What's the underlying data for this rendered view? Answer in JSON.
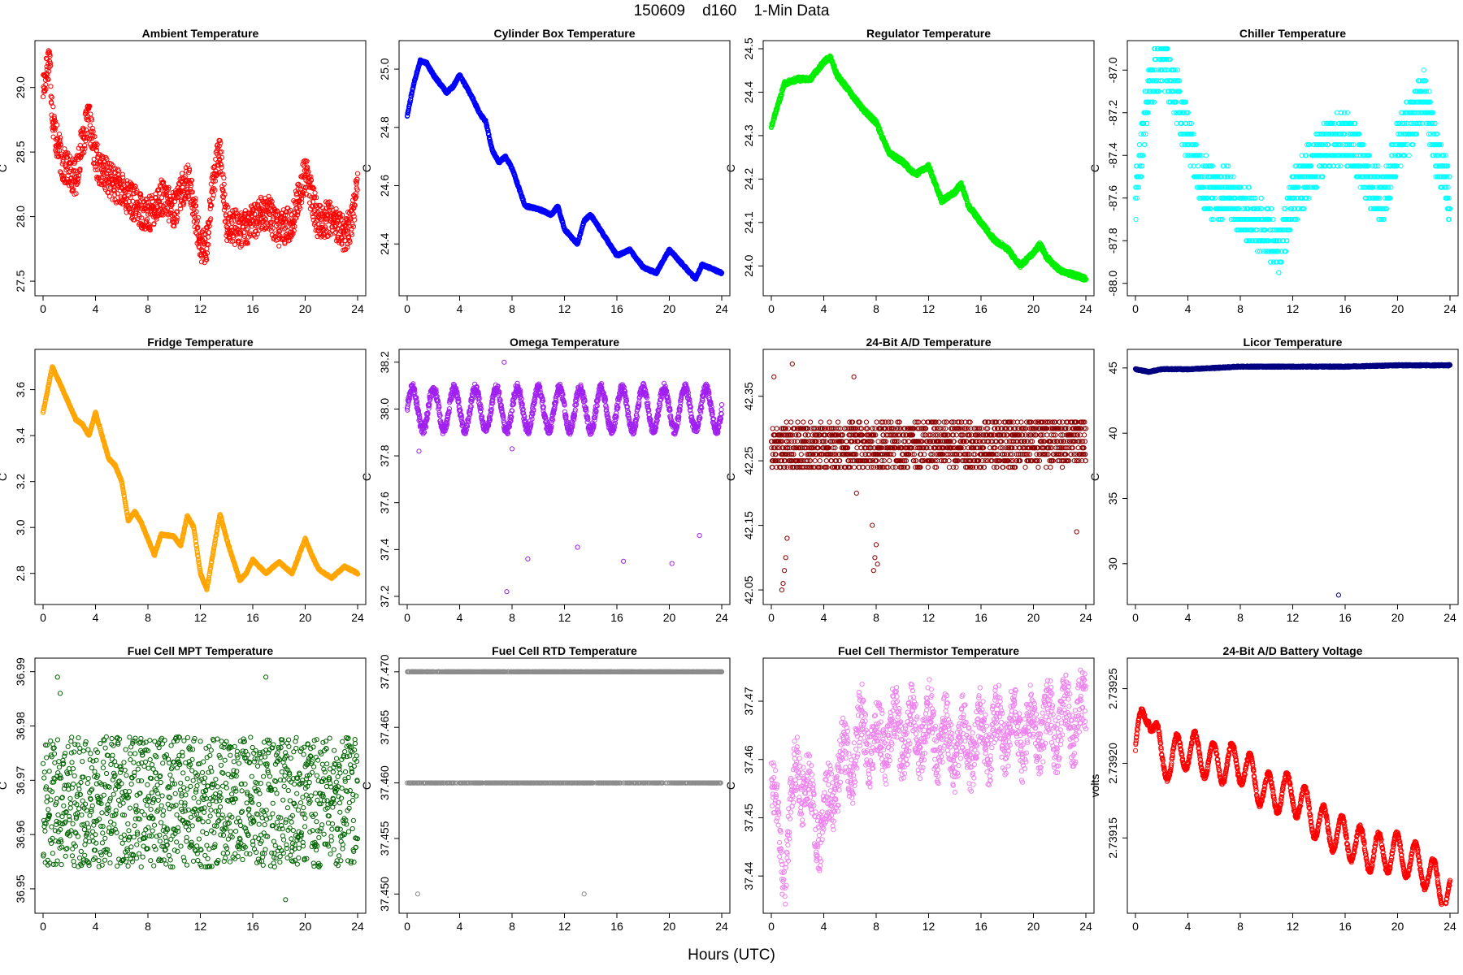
{
  "page": {
    "title": "150609    d160    1-Min Data",
    "xlabel": "Hours (UTC)"
  },
  "chart_data": [
    {
      "type": "scatter",
      "title": "Ambient Temperature",
      "ylabel": "C",
      "color": "#ff0000",
      "xlim": [
        0,
        24
      ],
      "ylim": [
        27.45,
        29.3
      ],
      "xticks": [
        0,
        4,
        8,
        12,
        16,
        20,
        24
      ],
      "yticks": [
        27.5,
        28.0,
        28.5,
        29.0
      ],
      "yticklabels": [
        "27.5",
        "28.0",
        "28.5",
        "29.0"
      ],
      "x": [
        0,
        0.3,
        0.5,
        0.7,
        1,
        1.5,
        2,
        2.5,
        3,
        3.5,
        4,
        4.5,
        5,
        6,
        7,
        8,
        9,
        10,
        11,
        11.5,
        12,
        12.5,
        13,
        13.5,
        14,
        15,
        16,
        17,
        18,
        19,
        20,
        21,
        22,
        23,
        23.5,
        24
      ],
      "y": [
        29.0,
        29.15,
        29.25,
        28.8,
        28.6,
        28.4,
        28.35,
        28.3,
        28.6,
        28.75,
        28.45,
        28.35,
        28.3,
        28.2,
        28.1,
        28.0,
        28.15,
        28.05,
        28.3,
        28.1,
        27.75,
        27.8,
        28.3,
        28.5,
        27.95,
        27.9,
        27.95,
        28.05,
        27.9,
        27.95,
        28.35,
        27.95,
        28.0,
        27.85,
        27.95,
        28.25
      ],
      "noise": 0.14
    },
    {
      "type": "scatter",
      "title": "Cylinder Box Temperature",
      "ylabel": "C",
      "color": "#0000ff",
      "xlim": [
        0,
        24
      ],
      "ylim": [
        24.25,
        25.07
      ],
      "xticks": [
        0,
        4,
        8,
        12,
        16,
        20,
        24
      ],
      "yticks": [
        24.4,
        24.6,
        24.8,
        25.0
      ],
      "yticklabels": [
        "24.4",
        "24.6",
        "24.8",
        "25.0"
      ],
      "x": [
        0,
        0.5,
        1,
        1.5,
        2,
        3,
        3.5,
        4,
        5,
        5.5,
        6,
        6.5,
        7,
        7.5,
        8,
        9,
        10,
        11,
        11.5,
        12,
        13,
        13.5,
        14,
        15,
        16,
        17,
        18,
        19,
        20,
        21,
        22,
        22.5,
        23,
        24
      ],
      "y": [
        24.84,
        24.95,
        25.03,
        25.02,
        24.98,
        24.92,
        24.94,
        24.98,
        24.9,
        24.85,
        24.82,
        24.72,
        24.68,
        24.7,
        24.66,
        24.53,
        24.52,
        24.5,
        24.53,
        24.45,
        24.4,
        24.48,
        24.5,
        24.43,
        24.36,
        24.38,
        24.32,
        24.3,
        24.38,
        24.33,
        24.28,
        24.33,
        24.32,
        24.3
      ],
      "noise": 0.004
    },
    {
      "type": "scatter",
      "title": "Regulator Temperature",
      "ylabel": "C",
      "color": "#00ee00",
      "xlim": [
        0,
        24
      ],
      "ylim": [
        23.95,
        24.5
      ],
      "xticks": [
        0,
        4,
        8,
        12,
        16,
        20,
        24
      ],
      "yticks": [
        24.0,
        24.1,
        24.2,
        24.3,
        24.4,
        24.5
      ],
      "yticklabels": [
        "24.0",
        "24.1",
        "24.2",
        "24.3",
        "24.4",
        "24.5"
      ],
      "x": [
        0,
        1,
        2,
        3,
        4,
        4.5,
        5,
        6,
        7,
        8,
        9,
        10,
        11,
        12,
        13,
        14,
        14.5,
        15,
        16,
        17,
        18,
        19,
        20,
        20.5,
        21,
        22,
        23,
        24
      ],
      "y": [
        24.32,
        24.42,
        24.43,
        24.43,
        24.47,
        24.48,
        24.44,
        24.4,
        24.36,
        24.33,
        24.26,
        24.24,
        24.21,
        24.23,
        24.15,
        24.17,
        24.19,
        24.14,
        24.1,
        24.06,
        24.04,
        24.0,
        24.03,
        24.05,
        24.02,
        23.99,
        23.98,
        23.97
      ],
      "noise": 0.005
    },
    {
      "type": "scatter",
      "title": "Chiller Temperature",
      "ylabel": "C",
      "color": "#00ffff",
      "xlim": [
        0,
        24
      ],
      "ylim": [
        -88.02,
        -86.9
      ],
      "xticks": [
        0,
        4,
        8,
        12,
        16,
        20,
        24
      ],
      "yticks": [
        -88.0,
        -87.8,
        -87.6,
        -87.4,
        -87.2,
        -87.0
      ],
      "yticklabels": [
        "-88.0",
        "-87.8",
        "-87.6",
        "-87.4",
        "-87.2",
        "-87.0"
      ],
      "x": [
        0,
        1,
        2,
        3,
        4,
        5,
        6,
        7,
        8,
        9,
        10,
        11,
        12,
        13,
        14,
        15,
        16,
        17,
        18,
        19,
        20,
        21,
        22,
        23,
        24
      ],
      "y": [
        -87.6,
        -87.1,
        -86.95,
        -87.1,
        -87.3,
        -87.5,
        -87.6,
        -87.55,
        -87.65,
        -87.7,
        -87.75,
        -87.85,
        -87.6,
        -87.5,
        -87.4,
        -87.35,
        -87.3,
        -87.4,
        -87.55,
        -87.6,
        -87.35,
        -87.25,
        -87.1,
        -87.4,
        -87.6
      ],
      "noise": 0.12,
      "quantum": 0.05
    },
    {
      "type": "scatter",
      "title": "Fridge Temperature",
      "ylabel": "C",
      "color": "#ffa500",
      "xlim": [
        0,
        24
      ],
      "ylim": [
        2.7,
        3.74
      ],
      "xticks": [
        0,
        4,
        8,
        12,
        16,
        20,
        24
      ],
      "yticks": [
        2.8,
        3.0,
        3.2,
        3.4,
        3.6
      ],
      "yticklabels": [
        "2.8",
        "3.0",
        "3.2",
        "3.4",
        "3.6"
      ],
      "x": [
        0,
        0.7,
        1.5,
        2.5,
        3,
        3.5,
        4,
        5,
        5.5,
        6,
        6.5,
        7,
        7.5,
        8,
        8.5,
        9,
        10,
        10.5,
        11,
        11.5,
        12,
        12.5,
        13,
        13.5,
        14,
        15,
        15.5,
        16,
        17,
        18,
        19,
        20,
        20.5,
        21,
        22,
        23,
        24
      ],
      "y": [
        3.5,
        3.7,
        3.6,
        3.47,
        3.45,
        3.4,
        3.5,
        3.3,
        3.27,
        3.2,
        3.03,
        3.07,
        3.02,
        2.95,
        2.88,
        2.97,
        2.96,
        2.92,
        3.05,
        3.0,
        2.8,
        2.73,
        2.9,
        3.06,
        2.95,
        2.77,
        2.8,
        2.86,
        2.8,
        2.85,
        2.8,
        2.95,
        2.88,
        2.82,
        2.78,
        2.83,
        2.8
      ],
      "noise": 0.004
    },
    {
      "type": "scatter",
      "title": "Omega Temperature",
      "ylabel": "C",
      "color": "#a020f0",
      "xlim": [
        0,
        24
      ],
      "ylim": [
        37.2,
        38.22
      ],
      "xticks": [
        0,
        4,
        8,
        12,
        16,
        20,
        24
      ],
      "yticks": [
        37.2,
        37.4,
        37.6,
        37.8,
        38.0,
        38.2
      ],
      "yticklabels": [
        "37.2",
        "37.4",
        "37.6",
        "37.8",
        "38.0",
        "38.2"
      ],
      "x": [
        0,
        24
      ],
      "y": [
        38.0,
        38.0
      ],
      "wave": 0.09,
      "waveperiod": 1.6,
      "noise": 0.02,
      "outliers": [
        [
          7.6,
          37.22
        ],
        [
          9.2,
          37.36
        ],
        [
          13.0,
          37.41
        ],
        [
          16.5,
          37.35
        ],
        [
          20.2,
          37.34
        ],
        [
          22.3,
          37.46
        ],
        [
          0.9,
          37.82
        ],
        [
          7.4,
          38.2
        ],
        [
          8.0,
          37.83
        ]
      ]
    },
    {
      "type": "scatter",
      "title": "24-Bit A/D Temperature",
      "ylabel": "C",
      "color": "#8b0000",
      "xlim": [
        0,
        24
      ],
      "ylim": [
        42.04,
        42.41
      ],
      "xticks": [
        0,
        4,
        8,
        12,
        16,
        20,
        24
      ],
      "yticks": [
        42.05,
        42.15,
        42.25,
        42.35
      ],
      "yticklabels": [
        "42.05",
        "42.15",
        "42.25",
        "42.35"
      ],
      "x": [
        0,
        24
      ],
      "y": [
        42.27,
        42.28
      ],
      "noise": 0.035,
      "quantum": 0.01,
      "outliers": [
        [
          0.9,
          42.06
        ],
        [
          1.0,
          42.08
        ],
        [
          1.1,
          42.1
        ],
        [
          1.2,
          42.13
        ],
        [
          0.8,
          42.05
        ],
        [
          7.8,
          42.08
        ],
        [
          7.9,
          42.1
        ],
        [
          8.0,
          42.12
        ],
        [
          7.7,
          42.15
        ],
        [
          8.1,
          42.09
        ],
        [
          1.6,
          42.4
        ],
        [
          23.3,
          42.14
        ],
        [
          6.3,
          42.38
        ],
        [
          6.5,
          42.2
        ],
        [
          0.2,
          42.38
        ]
      ]
    },
    {
      "type": "scatter",
      "title": "Licor Temperature",
      "ylabel": "C",
      "color": "#000080",
      "xlim": [
        0,
        24
      ],
      "ylim": [
        27.5,
        45.8
      ],
      "xticks": [
        0,
        4,
        8,
        12,
        16,
        20,
        24
      ],
      "yticks": [
        30,
        35,
        40,
        45
      ],
      "yticklabels": [
        "30",
        "35",
        "40",
        "45"
      ],
      "x": [
        0,
        1,
        2,
        4,
        8,
        12,
        16,
        20,
        24
      ],
      "y": [
        44.9,
        44.7,
        44.9,
        44.9,
        45.1,
        45.1,
        45.1,
        45.2,
        45.2
      ],
      "noise": 0.05,
      "outliers": [
        [
          15.5,
          27.6
        ]
      ]
    },
    {
      "type": "scatter",
      "title": "Fuel Cell MPT Temperature",
      "ylabel": "C",
      "color": "#006400",
      "xlim": [
        0,
        24
      ],
      "ylim": [
        36.947,
        36.991
      ],
      "xticks": [
        0,
        4,
        8,
        12,
        16,
        20,
        24
      ],
      "yticks": [
        36.95,
        36.96,
        36.97,
        36.98,
        36.99
      ],
      "yticklabels": [
        "36.95",
        "36.96",
        "36.97",
        "36.98",
        "36.99"
      ],
      "x": [
        0,
        24
      ],
      "y": [
        36.966,
        36.966
      ],
      "noise": 0.012,
      "samples": 1300,
      "outliers": [
        [
          1.1,
          36.989
        ],
        [
          17.0,
          36.989
        ],
        [
          18.5,
          36.948
        ],
        [
          1.3,
          36.986
        ]
      ]
    },
    {
      "type": "scatter",
      "title": "Fuel Cell RTD Temperature",
      "ylabel": "C",
      "color": "#8c8c8c",
      "xlim": [
        0,
        24
      ],
      "ylim": [
        37.449,
        37.4705
      ],
      "xticks": [
        0,
        4,
        8,
        12,
        16,
        20,
        24
      ],
      "yticks": [
        37.45,
        37.455,
        37.46,
        37.465,
        37.47
      ],
      "yticklabels": [
        "37.450",
        "37.455",
        "37.460",
        "37.465",
        "37.470"
      ],
      "levels": [
        37.46,
        37.47
      ],
      "outliers": [
        [
          0.8,
          37.45
        ],
        [
          13.5,
          37.45
        ]
      ]
    },
    {
      "type": "scatter",
      "title": "Fuel Cell Thermistor Temperature",
      "ylabel": "C",
      "color": "#ee82ee",
      "xlim": [
        0,
        24
      ],
      "ylim": [
        37.435,
        37.476
      ],
      "xticks": [
        0,
        4,
        8,
        12,
        16,
        20,
        24
      ],
      "yticks": [
        37.44,
        37.45,
        37.46,
        37.47
      ],
      "yticklabels": [
        "37.44",
        "37.45",
        "37.46",
        "37.47"
      ],
      "x": [
        0,
        1,
        2,
        3,
        4,
        5,
        6,
        7,
        8,
        9,
        10,
        12,
        14,
        16,
        18,
        20,
        22,
        24
      ],
      "y": [
        37.455,
        37.44,
        37.46,
        37.452,
        37.448,
        37.458,
        37.46,
        37.465,
        37.462,
        37.465,
        37.464,
        37.465,
        37.462,
        37.464,
        37.465,
        37.465,
        37.466,
        37.468
      ],
      "noise": 0.005,
      "wave": 0.004,
      "waveperiod": 1.3
    },
    {
      "type": "scatter",
      "title": "24-Bit A/D Battery Voltage",
      "ylabel": "volts",
      "color": "#ff0000",
      "xlim": [
        0,
        24
      ],
      "ylim": [
        2.739105,
        2.739265
      ],
      "xticks": [
        0,
        4,
        8,
        12,
        16,
        20,
        24
      ],
      "yticks": [
        2.73915,
        2.7392,
        2.73925
      ],
      "yticklabels": [
        "2.73915",
        "2.73920",
        "2.73925"
      ],
      "x": [
        0,
        1,
        2,
        4,
        6,
        8,
        10,
        12,
        14,
        16,
        18,
        20,
        22,
        24
      ],
      "y": [
        2.73921,
        2.73924,
        2.7392,
        2.73921,
        2.7392,
        2.7392,
        2.73918,
        2.73918,
        2.73916,
        2.73915,
        2.73914,
        2.73914,
        2.73913,
        2.73911
      ],
      "wave": 1.3e-05,
      "waveperiod": 1.4,
      "noise": 1.5e-06
    }
  ]
}
